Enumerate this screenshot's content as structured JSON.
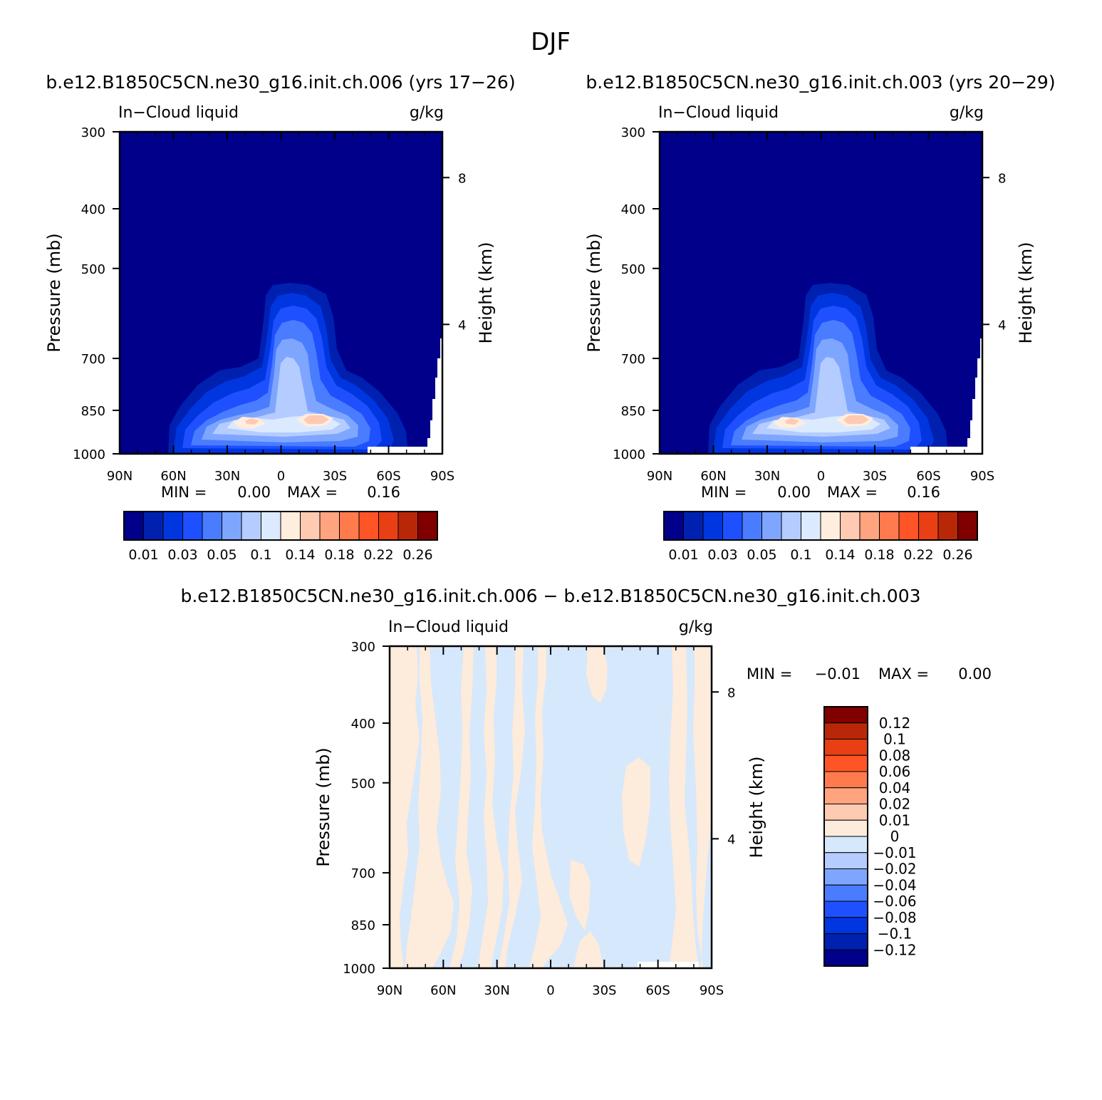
{
  "figure": {
    "title": "DJF",
    "diff_title": "b.e12.B1850C5CN.ne30_g16.init.ch.006 − b.e12.B1850C5CN.ne30_g16.init.ch.003"
  },
  "colors": {
    "frame": "#000000",
    "background": "#ffffff",
    "abs_scale": [
      "#00008b",
      "#0020b0",
      "#0036e0",
      "#1e50ff",
      "#4a7cff",
      "#7fa6ff",
      "#b4ccff",
      "#dceaff",
      "#ffeedd",
      "#ffcab2",
      "#ffa47e",
      "#ff7b4d",
      "#ff5526",
      "#e83f14",
      "#b82808",
      "#800000"
    ],
    "diff_scale": [
      "#00008b",
      "#0020b0",
      "#0036e0",
      "#1e50ff",
      "#4a7cff",
      "#7fa6ff",
      "#b4ccff",
      "#d6e8fb",
      "#fdebdb",
      "#ffcab2",
      "#ffa47e",
      "#ff7b4d",
      "#ff5526",
      "#e83f14",
      "#b82808",
      "#800000"
    ]
  },
  "chart_data": [
    {
      "type": "heatmap",
      "title": "b.e12.B1850C5CN.ne30_g16.init.ch.006 (yrs 17−26)",
      "left_string": "In−Cloud liquid",
      "right_string": "g/kg",
      "xlabel": "",
      "ylabel": "Pressure (mb)",
      "y2label": "Height (km)",
      "x_ticks": [
        "90N",
        "60N",
        "30N",
        "0",
        "30S",
        "60S",
        "90S"
      ],
      "y_ticks": [
        "300",
        "400",
        "500",
        "700",
        "850",
        "1000"
      ],
      "y2_ticks": [
        "8",
        "4"
      ],
      "ylim": [
        1000,
        300
      ],
      "y_scale": "log",
      "stats": {
        "min_label": "MIN =",
        "min": "0.00",
        "max_label": "MAX =",
        "max": "0.16"
      },
      "colorbar_labels": [
        "0.01",
        "0.03",
        "0.05",
        "0.1",
        "0.14",
        "0.18",
        "0.22",
        "0.26"
      ]
    },
    {
      "type": "heatmap",
      "title": "b.e12.B1850C5CN.ne30_g16.init.ch.003 (yrs 20−29)",
      "left_string": "In−Cloud liquid",
      "right_string": "g/kg",
      "xlabel": "",
      "ylabel": "Pressure (mb)",
      "y2label": "Height (km)",
      "x_ticks": [
        "90N",
        "60N",
        "30N",
        "0",
        "30S",
        "60S",
        "90S"
      ],
      "y_ticks": [
        "300",
        "400",
        "500",
        "700",
        "850",
        "1000"
      ],
      "y2_ticks": [
        "8",
        "4"
      ],
      "ylim": [
        1000,
        300
      ],
      "y_scale": "log",
      "stats": {
        "min_label": "MIN =",
        "min": "0.00",
        "max_label": "MAX =",
        "max": "0.16"
      },
      "colorbar_labels": [
        "0.01",
        "0.03",
        "0.05",
        "0.1",
        "0.14",
        "0.18",
        "0.22",
        "0.26"
      ]
    },
    {
      "type": "heatmap",
      "title": "",
      "left_string": "In−Cloud liquid",
      "right_string": "g/kg",
      "xlabel": "",
      "ylabel": "Pressure (mb)",
      "y2label": "Height (km)",
      "x_ticks": [
        "90N",
        "60N",
        "30N",
        "0",
        "30S",
        "60S",
        "90S"
      ],
      "y_ticks": [
        "300",
        "400",
        "500",
        "700",
        "850",
        "1000"
      ],
      "y2_ticks": [
        "8",
        "4"
      ],
      "ylim": [
        1000,
        300
      ],
      "y_scale": "log",
      "stats": {
        "min_label": "MIN =",
        "min": "−0.01",
        "max_label": "MAX =",
        "max": "0.00"
      },
      "colorbar_labels": [
        "0.12",
        "0.1",
        "0.08",
        "0.06",
        "0.04",
        "0.02",
        "0.01",
        "0",
        "−0.01",
        "−0.02",
        "−0.04",
        "−0.06",
        "−0.08",
        "−0.1",
        "−0.12"
      ]
    }
  ]
}
